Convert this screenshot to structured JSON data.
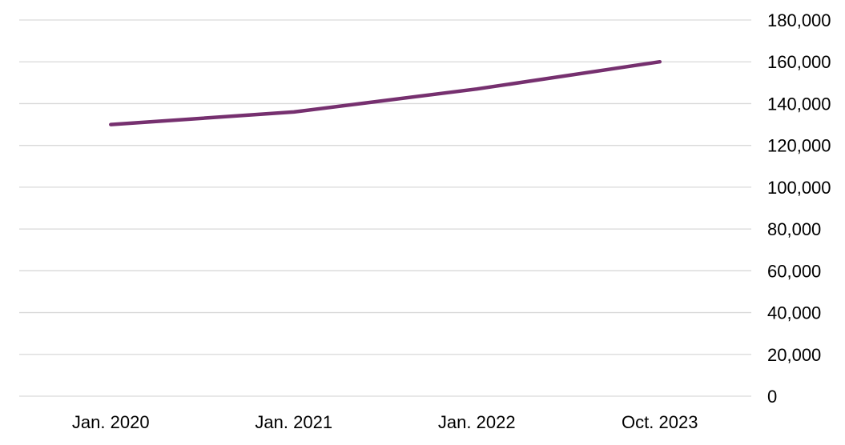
{
  "chart_data": {
    "type": "line",
    "title": "",
    "xlabel": "",
    "ylabel": "",
    "categories": [
      "Jan. 2020",
      "Jan. 2021",
      "Jan. 2022",
      "Oct. 2023"
    ],
    "series": [
      {
        "values": [
          130000,
          136000,
          147000,
          160000
        ]
      }
    ],
    "ylim": [
      0,
      180000
    ],
    "yticks": [
      0,
      20000,
      40000,
      60000,
      80000,
      100000,
      120000,
      140000,
      160000,
      180000
    ],
    "ytick_labels": [
      "0",
      "20,000",
      "40,000",
      "60,000",
      "80,000",
      "100,000",
      "120,000",
      "140,000",
      "160,000",
      "180,000"
    ],
    "y_axis_side": "right",
    "grid": true,
    "legend": "none",
    "colors": {
      "line": "#76306f",
      "grid": "#d9d9d9",
      "text": "#000000"
    }
  }
}
